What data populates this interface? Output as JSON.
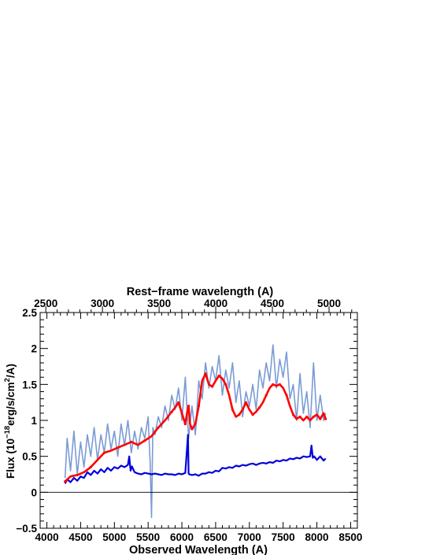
{
  "chart_data": {
    "type": "line",
    "title": "",
    "xlabel": "Observed Wavelength (A)",
    "ylabel_prefix": "Flux (10",
    "ylabel_exp1": "−18",
    "ylabel_mid": "erg/s/cm",
    "ylabel_exp2": "2",
    "ylabel_suffix": "/A)",
    "x2label": "Rest−frame wavelength (A)",
    "xlim": [
      3900,
      8600
    ],
    "ylim": [
      -0.5,
      2.5
    ],
    "x2lim": [
      2450,
      5250
    ],
    "grid": false,
    "legend": "none",
    "x_ticks": [
      "4000",
      "4500",
      "5000",
      "5500",
      "6000",
      "6500",
      "7000",
      "7500",
      "8000",
      "8500"
    ],
    "x_tick_values": [
      4000,
      4500,
      5000,
      5500,
      6000,
      6500,
      7000,
      7500,
      8000,
      8500
    ],
    "y_ticks": [
      "−0.5",
      "0",
      "0.5",
      "1",
      "1.5",
      "2",
      "2.5"
    ],
    "y_tick_values": [
      -0.5,
      0,
      0.5,
      1,
      1.5,
      2,
      2.5
    ],
    "x2_ticks": [
      "2500",
      "3000",
      "3500",
      "4000",
      "4500",
      "5000"
    ],
    "x2_tick_values": [
      2500,
      3000,
      3500,
      4000,
      4500,
      5000
    ],
    "colors": {
      "spectrum": "#7a9bd4",
      "model": "#ff0000",
      "error": "#0000dd",
      "zero_line": "#000000"
    },
    "series": [
      {
        "key": "spectrum",
        "x": [
          4270,
          4300,
          4350,
          4400,
          4450,
          4500,
          4550,
          4600,
          4650,
          4700,
          4750,
          4800,
          4850,
          4900,
          4950,
          5000,
          5050,
          5100,
          5150,
          5200,
          5250,
          5300,
          5350,
          5400,
          5450,
          5500,
          5530,
          5550,
          5570,
          5600,
          5650,
          5700,
          5750,
          5800,
          5850,
          5900,
          5950,
          6000,
          6050,
          6100,
          6150,
          6200,
          6250,
          6300,
          6350,
          6400,
          6450,
          6500,
          6550,
          6600,
          6650,
          6700,
          6750,
          6800,
          6850,
          6900,
          6950,
          7000,
          7050,
          7100,
          7150,
          7200,
          7250,
          7300,
          7350,
          7400,
          7450,
          7500,
          7550,
          7600,
          7650,
          7700,
          7750,
          7800,
          7850,
          7900,
          7950,
          8000,
          8050,
          8100,
          8130
        ],
        "y": [
          0.2,
          0.75,
          0.3,
          0.85,
          0.25,
          0.7,
          0.35,
          0.8,
          0.5,
          0.9,
          0.45,
          0.8,
          0.55,
          0.95,
          0.6,
          0.85,
          0.5,
          0.95,
          0.65,
          1.0,
          0.55,
          0.85,
          0.6,
          0.9,
          0.75,
          1.05,
          0.4,
          -0.35,
          0.9,
          0.8,
          1.05,
          0.9,
          1.2,
          1.0,
          1.35,
          1.15,
          1.45,
          1.0,
          1.6,
          0.75,
          1.2,
          0.8,
          1.55,
          1.3,
          1.8,
          1.45,
          1.75,
          1.55,
          1.9,
          1.35,
          1.7,
          1.45,
          1.8,
          1.25,
          1.55,
          1.05,
          1.4,
          1.2,
          1.5,
          1.15,
          1.7,
          1.45,
          1.8,
          1.55,
          2.05,
          1.45,
          1.85,
          1.6,
          1.95,
          1.3,
          1.5,
          1.0,
          1.65,
          1.1,
          1.4,
          0.9,
          1.8,
          1.0,
          1.35,
          1.0,
          1.1
        ]
      },
      {
        "key": "model",
        "x": [
          4270,
          4350,
          4450,
          4550,
          4650,
          4750,
          4850,
          4950,
          5050,
          5150,
          5250,
          5350,
          5450,
          5550,
          5650,
          5750,
          5850,
          5900,
          5950,
          6000,
          6050,
          6080,
          6100,
          6120,
          6150,
          6200,
          6250,
          6300,
          6350,
          6400,
          6450,
          6500,
          6550,
          6600,
          6650,
          6700,
          6750,
          6800,
          6850,
          6900,
          6950,
          7000,
          7050,
          7100,
          7150,
          7200,
          7250,
          7300,
          7350,
          7400,
          7450,
          7500,
          7550,
          7600,
          7650,
          7700,
          7750,
          7800,
          7850,
          7900,
          7950,
          8000,
          8050,
          8100,
          8130
        ],
        "y": [
          0.15,
          0.22,
          0.24,
          0.28,
          0.35,
          0.45,
          0.55,
          0.58,
          0.62,
          0.66,
          0.7,
          0.66,
          0.72,
          0.78,
          0.9,
          1.0,
          1.12,
          1.18,
          1.25,
          1.1,
          0.95,
          1.12,
          1.2,
          0.95,
          0.88,
          0.95,
          1.2,
          1.55,
          1.65,
          1.5,
          1.47,
          1.55,
          1.62,
          1.58,
          1.5,
          1.35,
          1.15,
          1.05,
          1.08,
          1.15,
          1.25,
          1.15,
          1.08,
          1.12,
          1.18,
          1.25,
          1.35,
          1.45,
          1.5,
          1.48,
          1.5,
          1.45,
          1.35,
          1.2,
          1.08,
          1.02,
          1.05,
          1.0,
          1.05,
          1.0,
          1.05,
          1.08,
          1.02,
          1.1,
          1.02
        ]
      },
      {
        "key": "error",
        "x": [
          4270,
          4300,
          4350,
          4400,
          4450,
          4500,
          4550,
          4600,
          4650,
          4700,
          4750,
          4800,
          4850,
          4900,
          4950,
          5000,
          5050,
          5100,
          5150,
          5200,
          5220,
          5240,
          5260,
          5300,
          5350,
          5400,
          5450,
          5500,
          5550,
          5600,
          5650,
          5700,
          5750,
          5800,
          5850,
          5900,
          5950,
          6000,
          6050,
          6090,
          6100,
          6110,
          6150,
          6200,
          6250,
          6300,
          6350,
          6400,
          6450,
          6500,
          6550,
          6600,
          6650,
          6700,
          6750,
          6800,
          6850,
          6900,
          6950,
          7000,
          7050,
          7100,
          7150,
          7200,
          7250,
          7300,
          7350,
          7400,
          7450,
          7500,
          7550,
          7600,
          7650,
          7700,
          7750,
          7800,
          7850,
          7900,
          7920,
          7940,
          7960,
          8000,
          8050,
          8100,
          8130
        ],
        "y": [
          0.12,
          0.18,
          0.14,
          0.2,
          0.16,
          0.22,
          0.2,
          0.28,
          0.24,
          0.3,
          0.26,
          0.32,
          0.28,
          0.34,
          0.3,
          0.35,
          0.33,
          0.37,
          0.35,
          0.38,
          0.5,
          0.3,
          0.36,
          0.28,
          0.26,
          0.25,
          0.27,
          0.26,
          0.25,
          0.26,
          0.25,
          0.24,
          0.26,
          0.25,
          0.25,
          0.24,
          0.26,
          0.25,
          0.27,
          0.8,
          0.26,
          0.25,
          0.24,
          0.25,
          0.23,
          0.26,
          0.26,
          0.28,
          0.27,
          0.3,
          0.29,
          0.34,
          0.33,
          0.35,
          0.34,
          0.37,
          0.36,
          0.38,
          0.37,
          0.39,
          0.4,
          0.38,
          0.4,
          0.41,
          0.4,
          0.42,
          0.41,
          0.44,
          0.43,
          0.45,
          0.44,
          0.47,
          0.46,
          0.48,
          0.47,
          0.5,
          0.49,
          0.5,
          0.65,
          0.48,
          0.5,
          0.45,
          0.5,
          0.44,
          0.47
        ]
      }
    ]
  }
}
